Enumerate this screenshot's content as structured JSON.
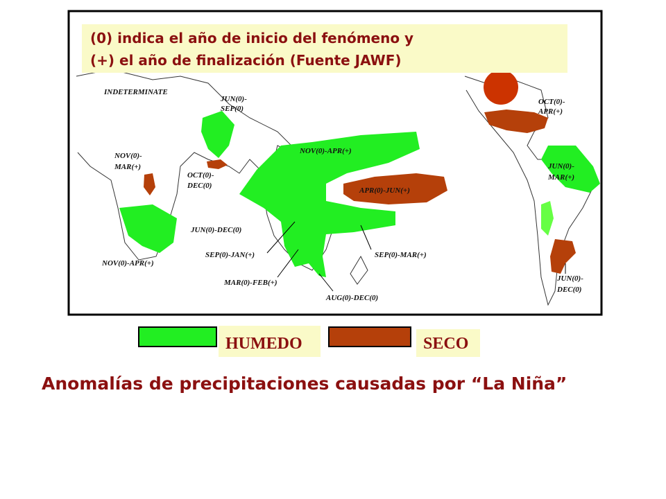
{
  "note": {
    "lines": [
      "(0) indica el año de inicio del fenómeno y",
      "(+) el año de finalización (Fuente JAWF)"
    ]
  },
  "map_labels": [
    {
      "lines": [
        "INDETERMINATE"
      ]
    },
    {
      "lines": [
        "JUN(0)-",
        "SEP(0)"
      ]
    },
    {
      "lines": [
        "NOV(0)-",
        "MAR(+)"
      ]
    },
    {
      "lines": [
        "OCT(0)-",
        "DEC(0)"
      ]
    },
    {
      "lines": [
        "NOV(0)-APR(+)"
      ]
    },
    {
      "lines": [
        "APR(0)-JUN(+)"
      ]
    },
    {
      "lines": [
        "JUN(0)-DEC(0)"
      ]
    },
    {
      "lines": [
        "SEP(0)-JAN(+)"
      ]
    },
    {
      "lines": [
        "SEP(0)-MAR(+)"
      ]
    },
    {
      "lines": [
        "MAR(0)-FEB(+)"
      ]
    },
    {
      "lines": [
        "AUG(0)-DEC(0)"
      ]
    },
    {
      "lines": [
        "NOV(0)-APR(+)"
      ]
    },
    {
      "lines": [
        "OCT(0)-",
        "APR(+)"
      ]
    },
    {
      "lines": [
        "JUN(0)-",
        "MAR(+)"
      ]
    },
    {
      "lines": [
        "JUN(0)-",
        "DEC(0)"
      ]
    }
  ],
  "legend": {
    "wet": "HUMEDO",
    "dry": "SECO"
  },
  "caption": "Anomalías de precipitaciones causadas por “La Niña”"
}
